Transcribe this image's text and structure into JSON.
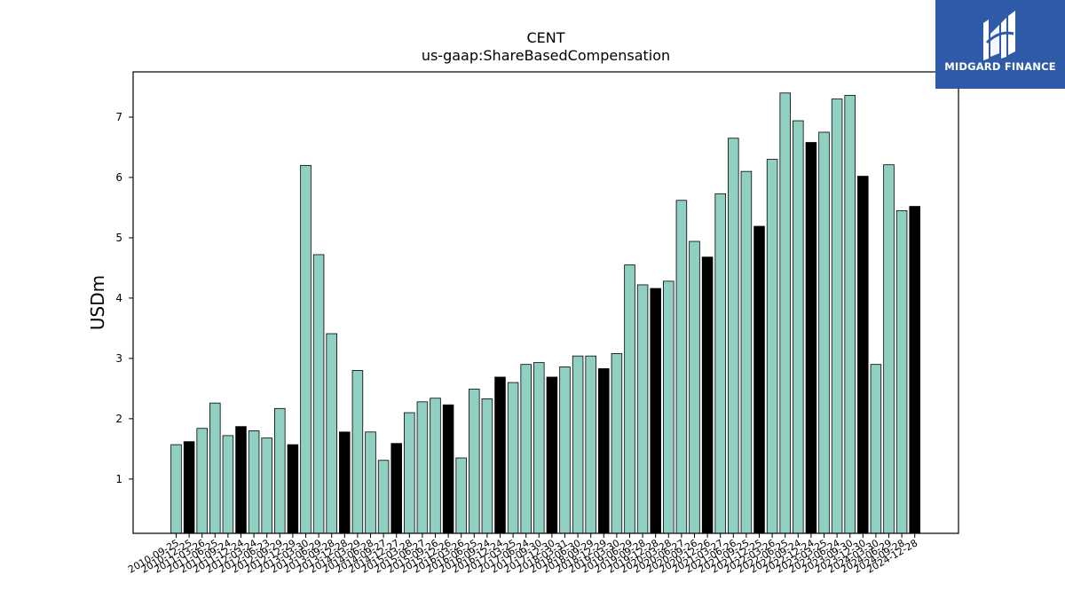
{
  "brand": {
    "name": "MIDGARD FINANCE",
    "color": "#2f5aa8",
    "logo_icon": "midgard-logo-icon"
  },
  "chart_data": {
    "type": "bar",
    "title": "CENT",
    "subtitle": "us-gaap:ShareBasedCompensation",
    "xlabel": "",
    "ylabel": "USDm",
    "ylim": [
      0.1,
      7.75
    ],
    "yticks": [
      1,
      2,
      3,
      4,
      5,
      6,
      7
    ],
    "grid": false,
    "legend": "none",
    "colors": {
      "quarter": "#8fd0c3",
      "fiscal_year": "#000000",
      "edge": "#000000"
    },
    "categories": [
      "2010-09-25",
      "2010-12-25",
      "2011-03-26",
      "2011-06-25",
      "2011-09-24",
      "2011-12-24",
      "2012-03-24",
      "2012-06-23",
      "2012-09-29",
      "2012-12-29",
      "2013-03-30",
      "2013-06-29",
      "2013-09-28",
      "2013-12-28",
      "2014-03-29",
      "2014-06-28",
      "2014-09-27",
      "2014-12-27",
      "2015-03-28",
      "2015-06-27",
      "2015-09-26",
      "2015-12-26",
      "2016-03-26",
      "2016-06-25",
      "2016-09-24",
      "2016-12-24",
      "2017-03-25",
      "2017-06-24",
      "2017-09-30",
      "2017-12-30",
      "2018-03-31",
      "2018-06-30",
      "2018-09-29",
      "2018-12-29",
      "2019-03-30",
      "2019-06-29",
      "2019-09-28",
      "2019-12-28",
      "2020-03-28",
      "2020-06-27",
      "2020-09-26",
      "2020-12-26",
      "2021-03-27",
      "2021-06-26",
      "2021-09-25",
      "2021-12-25",
      "2022-03-26",
      "2022-06-25",
      "2022-09-24",
      "2022-12-24",
      "2023-03-25",
      "2023-06-24",
      "2023-09-30",
      "2023-12-30",
      "2024-03-30",
      "2024-06-29",
      "2024-09-28",
      "2024-12-28"
    ],
    "values": [
      1.57,
      1.62,
      1.84,
      2.26,
      1.72,
      1.87,
      1.8,
      1.68,
      2.17,
      1.57,
      6.2,
      4.72,
      3.41,
      1.78,
      2.8,
      1.78,
      1.31,
      1.59,
      2.1,
      2.28,
      2.34,
      2.23,
      1.35,
      2.49,
      2.33,
      2.69,
      2.6,
      2.9,
      2.93,
      2.69,
      2.86,
      3.04,
      3.04,
      2.83,
      3.08,
      4.55,
      4.22,
      4.16,
      4.28,
      5.62,
      4.94,
      4.68,
      5.73,
      6.65,
      6.1,
      5.19,
      6.3,
      7.4,
      6.94,
      6.58,
      6.75,
      7.3,
      7.36,
      6.02,
      2.9,
      6.21,
      5.45,
      5.52
    ],
    "fiscal_year_flags": [
      0,
      1,
      0,
      0,
      0,
      1,
      0,
      0,
      0,
      1,
      0,
      0,
      0,
      1,
      0,
      0,
      0,
      1,
      0,
      0,
      0,
      1,
      0,
      0,
      0,
      1,
      0,
      0,
      0,
      1,
      0,
      0,
      0,
      1,
      0,
      0,
      0,
      1,
      0,
      0,
      0,
      1,
      0,
      0,
      0,
      1,
      0,
      0,
      0,
      1,
      0,
      0,
      0,
      1,
      0,
      0,
      0,
      1
    ]
  }
}
